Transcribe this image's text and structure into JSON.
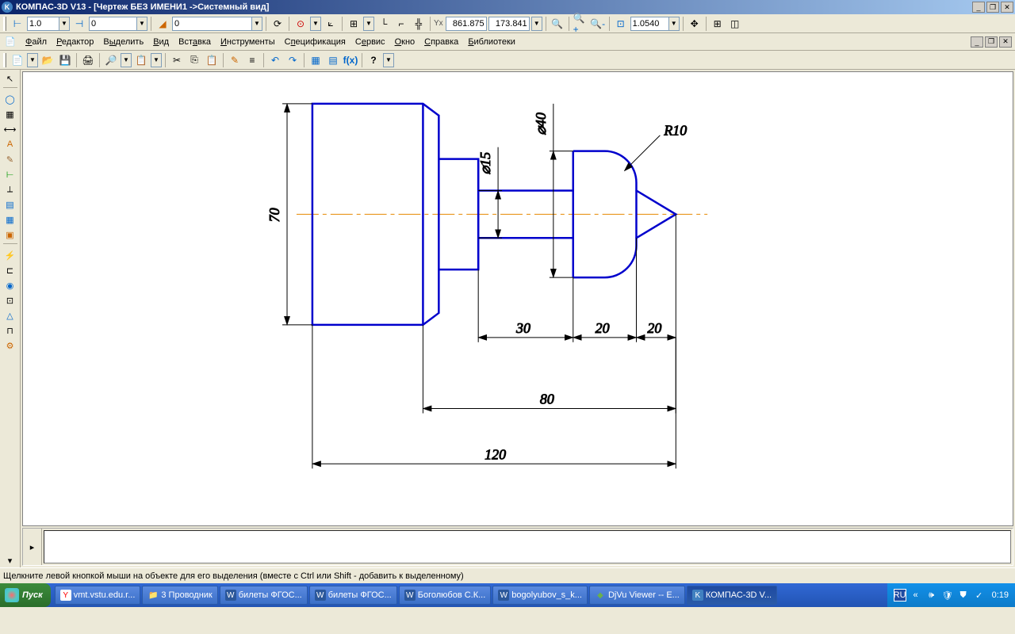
{
  "titlebar": {
    "text": "КОМПАС-3D V13 - [Чертеж БЕЗ ИМЕНИ1 ->Системный вид]"
  },
  "toolbar1": {
    "scale1": "1.0",
    "scale2": "0",
    "layer": "0",
    "coord_x_label": "Yx",
    "coord_x": "861.875",
    "coord_y": "173.841",
    "zoom": "1.0540"
  },
  "menu": {
    "items": [
      "Файл",
      "Редактор",
      "Выделить",
      "Вид",
      "Вставка",
      "Инструменты",
      "Спецификация",
      "Сервис",
      "Окно",
      "Справка",
      "Библиотеки"
    ]
  },
  "drawing": {
    "outline_color": "#0000cc",
    "centerline_color": "#e68a00",
    "dim_color": "#000000",
    "canvas_bg": "#ffffff",
    "dims": {
      "h70": "70",
      "d15": "⌀15",
      "d40": "⌀40",
      "r10": "R10",
      "l30": "30",
      "l20a": "20",
      "l20b": "20",
      "l80": "80",
      "l120": "120"
    },
    "font_size": 18
  },
  "statusbar": {
    "text": "Щелкните левой кнопкой мыши на объекте для его выделения (вместе с Ctrl или Shift - добавить к выделенному)"
  },
  "taskbar": {
    "start": "Пуск",
    "items": [
      {
        "label": "vmt.vstu.edu.r...",
        "active": false,
        "icon": "Y",
        "icon_bg": "#fff",
        "icon_color": "#ff0000"
      },
      {
        "label": "3 Проводник",
        "active": false,
        "icon": "📁",
        "icon_bg": "",
        "icon_color": ""
      },
      {
        "label": "билеты ФГОС...",
        "active": false,
        "icon": "W",
        "icon_bg": "#2b579a",
        "icon_color": "#fff"
      },
      {
        "label": "билеты ФГОС...",
        "active": false,
        "icon": "W",
        "icon_bg": "#2b579a",
        "icon_color": "#fff"
      },
      {
        "label": "Боголюбов С.К...",
        "active": false,
        "icon": "W",
        "icon_bg": "#2b579a",
        "icon_color": "#fff"
      },
      {
        "label": "bogolyubov_s_k...",
        "active": false,
        "icon": "W",
        "icon_bg": "#2b579a",
        "icon_color": "#fff"
      },
      {
        "label": "DjVu Viewer -- E...",
        "active": false,
        "icon": "◆",
        "icon_bg": "",
        "icon_color": "#6ab04c"
      },
      {
        "label": "КОМПАС-3D V...",
        "active": true,
        "icon": "K",
        "icon_bg": "#4080c0",
        "icon_color": "#fff"
      }
    ],
    "lang": "RU",
    "clock": "0:19"
  }
}
